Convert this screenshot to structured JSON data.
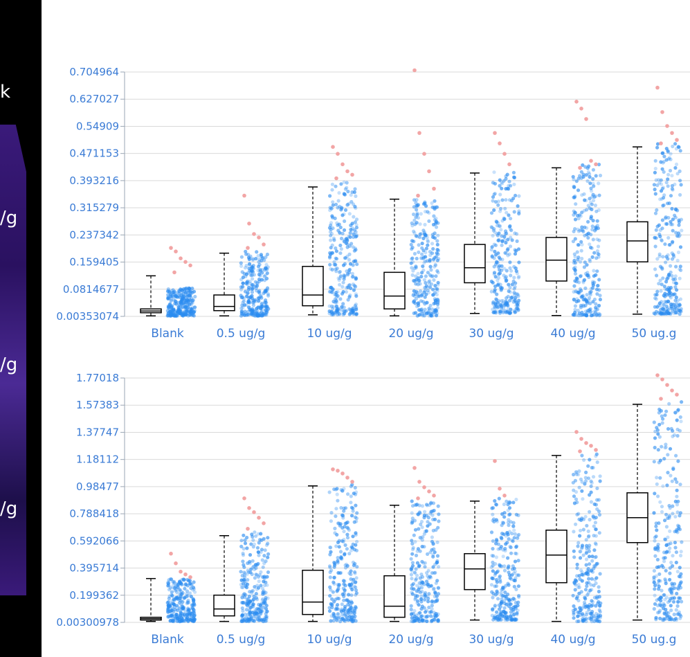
{
  "left_panel": {
    "labels": [
      "k",
      "/g",
      "/g",
      "/g"
    ]
  },
  "colors": {
    "grid": "#d9d9d9",
    "tick_text": "#3a7bd5",
    "point": "#2b8cf0",
    "outlier": "#f2a5a5",
    "box": "#000000"
  },
  "chart_data": [
    {
      "type": "box",
      "title": "",
      "xlabel": "",
      "ylabel": "",
      "categories": [
        "Blank",
        "0.5 ug/g",
        "10 ug/g",
        "20 ug/g",
        "30 ug/g",
        "40 ug/g",
        "50 ug.g"
      ],
      "y_ticks": [
        "0.704964",
        "0.627027",
        "0.54909",
        "0.471153",
        "0.393216",
        "0.315279",
        "0.237342",
        "0.159405",
        "0.0814677",
        "0.00353074"
      ],
      "ylim": [
        0.00353074,
        0.704964
      ],
      "grid": true,
      "boxes": [
        {
          "min": 0.005,
          "q1": 0.014,
          "median": 0.019,
          "q3": 0.025,
          "max": 0.12,
          "points_max": 0.085,
          "outliers": [
            0.2,
            0.19,
            0.17,
            0.16,
            0.15,
            0.13
          ]
        },
        {
          "min": 0.005,
          "q1": 0.02,
          "median": 0.032,
          "q3": 0.065,
          "max": 0.185,
          "points_max": 0.19,
          "outliers": [
            0.35,
            0.27,
            0.24,
            0.23,
            0.21,
            0.2
          ]
        },
        {
          "min": 0.008,
          "q1": 0.034,
          "median": 0.065,
          "q3": 0.147,
          "max": 0.375,
          "points_max": 0.39,
          "outliers": [
            0.49,
            0.47,
            0.44,
            0.42,
            0.41,
            0.4
          ]
        },
        {
          "min": 0.005,
          "q1": 0.025,
          "median": 0.062,
          "q3": 0.13,
          "max": 0.34,
          "points_max": 0.34,
          "outliers": [
            0.71,
            0.53,
            0.47,
            0.42,
            0.37,
            0.35
          ]
        },
        {
          "min": 0.012,
          "q1": 0.1,
          "median": 0.143,
          "q3": 0.21,
          "max": 0.415,
          "points_max": 0.42,
          "outliers": [
            0.53,
            0.5,
            0.47,
            0.44
          ]
        },
        {
          "min": 0.006,
          "q1": 0.105,
          "median": 0.165,
          "q3": 0.23,
          "max": 0.43,
          "points_max": 0.44,
          "outliers": [
            0.62,
            0.6,
            0.57,
            0.45,
            0.44,
            0.43
          ]
        },
        {
          "min": 0.01,
          "q1": 0.16,
          "median": 0.22,
          "q3": 0.275,
          "max": 0.49,
          "points_max": 0.5,
          "outliers": [
            0.66,
            0.59,
            0.55,
            0.53,
            0.51,
            0.5
          ]
        }
      ]
    },
    {
      "type": "box",
      "title": "",
      "xlabel": "",
      "ylabel": "",
      "categories": [
        "Blank",
        "0.5 ug/g",
        "10 ug/g",
        "20 ug/g",
        "30 ug/g",
        "40 ug/g",
        "50 ug.g"
      ],
      "y_ticks": [
        "1.77018",
        "1.57383",
        "1.37747",
        "1.18112",
        "0.98477",
        "0.788418",
        "0.592066",
        "0.395714",
        "0.199362",
        "0.00300978"
      ],
      "ylim": [
        0.00300978,
        1.77018
      ],
      "grid": true,
      "boxes": [
        {
          "min": 0.01,
          "q1": 0.02,
          "median": 0.03,
          "q3": 0.04,
          "max": 0.32,
          "points_max": 0.32,
          "outliers": [
            0.5,
            0.43,
            0.37,
            0.35,
            0.33
          ]
        },
        {
          "min": 0.01,
          "q1": 0.05,
          "median": 0.1,
          "q3": 0.2,
          "max": 0.63,
          "points_max": 0.66,
          "outliers": [
            0.9,
            0.83,
            0.8,
            0.76,
            0.72,
            0.68
          ]
        },
        {
          "min": 0.01,
          "q1": 0.06,
          "median": 0.15,
          "q3": 0.38,
          "max": 0.99,
          "points_max": 1.0,
          "outliers": [
            1.11,
            1.1,
            1.08,
            1.05,
            1.02
          ]
        },
        {
          "min": 0.01,
          "q1": 0.04,
          "median": 0.12,
          "q3": 0.34,
          "max": 0.85,
          "points_max": 0.88,
          "outliers": [
            1.12,
            1.02,
            0.98,
            0.95,
            0.92,
            0.9
          ]
        },
        {
          "min": 0.02,
          "q1": 0.24,
          "median": 0.39,
          "q3": 0.5,
          "max": 0.88,
          "points_max": 0.9,
          "outliers": [
            1.17,
            0.97,
            0.92
          ]
        },
        {
          "min": 0.01,
          "q1": 0.29,
          "median": 0.49,
          "q3": 0.67,
          "max": 1.21,
          "points_max": 1.22,
          "outliers": [
            1.38,
            1.33,
            1.3,
            1.28,
            1.25,
            1.24
          ]
        },
        {
          "min": 0.02,
          "q1": 0.58,
          "median": 0.76,
          "q3": 0.94,
          "max": 1.58,
          "points_max": 1.6,
          "outliers": [
            1.79,
            1.76,
            1.72,
            1.68,
            1.65,
            1.62
          ]
        }
      ]
    }
  ]
}
